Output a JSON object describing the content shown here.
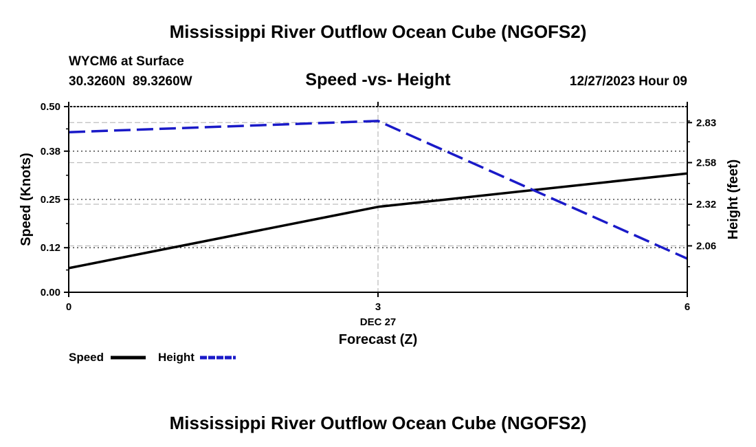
{
  "page_title": "Mississippi River Outflow Ocean Cube (NGOFS2)",
  "footer_title": "Mississippi River Outflow Ocean Cube (NGOFS2)",
  "station": {
    "name_line": "WYCM6 at Surface",
    "coords_line": "30.3260N  89.3260W"
  },
  "timestamp": "12/27/2023 Hour 09",
  "chart_data": {
    "type": "line",
    "title": "Speed -vs- Height",
    "xlabel": "Forecast (Z)",
    "x_date_label": "DEC 27",
    "x": [
      0,
      3,
      6
    ],
    "x_tick_labels": [
      "0",
      "3",
      "6"
    ],
    "xlim": [
      0,
      6
    ],
    "ylabel_left": "Speed (Knots)",
    "ylim_left": [
      0,
      0.5
    ],
    "left_ticks": [
      0.0,
      0.12,
      0.25,
      0.38,
      0.5
    ],
    "left_tick_labels": [
      "0.00",
      "0.12",
      "0.25",
      "0.38",
      "0.50"
    ],
    "ylabel_right": "Height (feet)",
    "ylim_right": [
      1.77,
      2.93
    ],
    "right_ticks": [
      2.06,
      2.32,
      2.58,
      2.83
    ],
    "right_tick_labels": [
      "2.06",
      "2.32",
      "2.58",
      "2.83"
    ],
    "grid": true,
    "series": [
      {
        "name": "Speed",
        "axis": "left",
        "color": "#000000",
        "dash": "solid",
        "values": [
          0.065,
          0.23,
          0.32
        ]
      },
      {
        "name": "Height",
        "axis": "right",
        "color": "#1a1ac8",
        "dash": "dashed",
        "values": [
          2.77,
          2.84,
          1.98
        ]
      }
    ],
    "legend": [
      {
        "label": "Speed",
        "color": "#000000",
        "dash": "solid"
      },
      {
        "label": "Height",
        "color": "#1a1ac8",
        "dash": "dashed"
      }
    ]
  }
}
